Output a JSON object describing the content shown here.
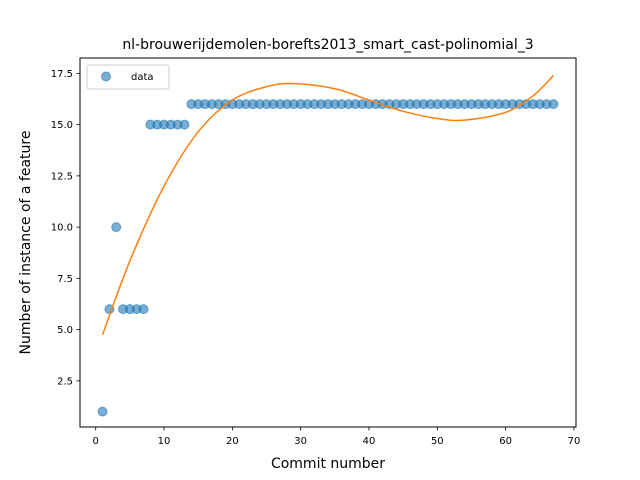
{
  "chart_data": {
    "type": "scatter",
    "title": "nl-brouwerijdemolen-borefts2013_smart_cast-polinomial_3",
    "xlabel": "Commit number",
    "ylabel": "Number of instance of a feature",
    "xlim": [
      -2.3,
      70.3
    ],
    "ylim": [
      0.25,
      18.25
    ],
    "xticks": [
      0,
      10,
      20,
      30,
      40,
      50,
      60,
      70
    ],
    "yticks": [
      2.5,
      5.0,
      7.5,
      10.0,
      12.5,
      15.0,
      17.5
    ],
    "xtick_labels": [
      "0",
      "10",
      "20",
      "30",
      "40",
      "50",
      "60",
      "70"
    ],
    "ytick_labels": [
      "2.5",
      "5.0",
      "7.5",
      "10.0",
      "12.5",
      "15.0",
      "17.5"
    ],
    "grid": false,
    "legend": {
      "position": "upper-left",
      "entries": [
        "data"
      ]
    },
    "series": [
      {
        "name": "data",
        "kind": "scatter",
        "color": "#1f77b4",
        "x": [
          1,
          2,
          3,
          4,
          5,
          6,
          7,
          8,
          9,
          10,
          11,
          12,
          13,
          14,
          15,
          16,
          17,
          18,
          19,
          20,
          21,
          22,
          23,
          24,
          25,
          26,
          27,
          28,
          29,
          30,
          31,
          32,
          33,
          34,
          35,
          36,
          37,
          38,
          39,
          40,
          41,
          42,
          43,
          44,
          45,
          46,
          47,
          48,
          49,
          50,
          51,
          52,
          53,
          54,
          55,
          56,
          57,
          58,
          59,
          60,
          61,
          62,
          63,
          64,
          65,
          66,
          67
        ],
        "y": [
          1,
          6,
          10,
          6,
          6,
          6,
          6,
          15,
          15,
          15,
          15,
          15,
          15,
          16,
          16,
          16,
          16,
          16,
          16,
          16,
          16,
          16,
          16,
          16,
          16,
          16,
          16,
          16,
          16,
          16,
          16,
          16,
          16,
          16,
          16,
          16,
          16,
          16,
          16,
          16,
          16,
          16,
          16,
          16,
          16,
          16,
          16,
          16,
          16,
          16,
          16,
          16,
          16,
          16,
          16,
          16,
          16,
          16,
          16,
          16,
          16,
          16,
          16,
          16,
          16,
          16,
          16
        ]
      },
      {
        "kind": "line",
        "color": "#ff7f0e",
        "x": [
          1,
          5,
          10,
          15,
          20,
          25,
          29,
          35,
          40,
          45,
          50,
          54,
          60,
          64,
          67
        ],
        "y": [
          4.75,
          8.35,
          12.0,
          14.65,
          16.2,
          16.85,
          17.0,
          16.75,
          16.2,
          15.65,
          15.3,
          15.22,
          15.6,
          16.4,
          17.4
        ]
      }
    ]
  }
}
